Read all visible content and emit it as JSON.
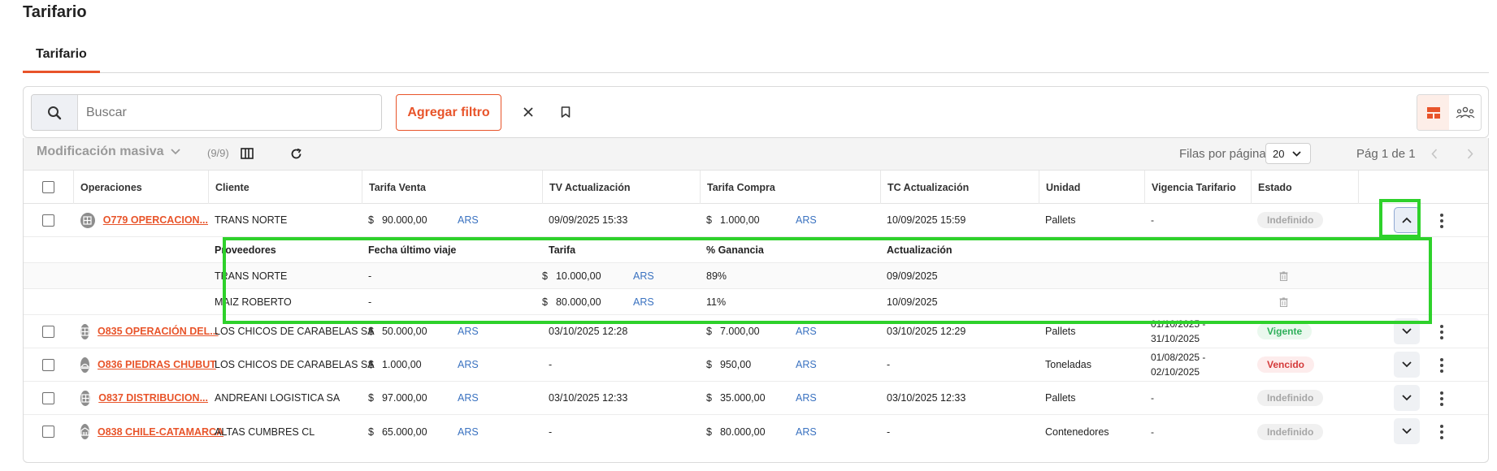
{
  "page": {
    "title": "Tarifario",
    "tab": "Tarifario"
  },
  "toolbar": {
    "search_placeholder": "Buscar",
    "add_filter": "Agregar filtro"
  },
  "grid_toolbar": {
    "mass_edit": "Modificación masiva",
    "count": "(9/9)",
    "rows_per_page_label": "Filas por página",
    "rows_per_page_value": "20",
    "page_info": "Pág 1 de 1"
  },
  "columns": [
    "Operaciones",
    "Cliente",
    "Tarifa Venta",
    "TV Actualización",
    "Tarifa Compra",
    "TC Actualización",
    "Unidad",
    "Vigencia Tarifario",
    "Estado"
  ],
  "rows": [
    {
      "op": "O779 OPERCACION...",
      "icon": "pallet-icon",
      "cliente": "TRANS NORTE",
      "tv_sign": "$",
      "tv": "90.000,00",
      "tv_cur": "ARS",
      "tv_act": "09/09/2025 15:33",
      "tc_sign": "$",
      "tc": "1.000,00",
      "tc_cur": "ARS",
      "tc_act": "10/09/2025 15:59",
      "unidad": "Pallets",
      "vig1": "-",
      "vig2": "",
      "estado": "Indefinido",
      "estado_kind": "indef"
    },
    {
      "op": "O835 OPERACIÓN DEL...",
      "icon": "pallet-icon",
      "cliente": "LOS CHICOS DE CARABELAS SA",
      "tv_sign": "$",
      "tv": "50.000,00",
      "tv_cur": "ARS",
      "tv_act": "03/10/2025 12:28",
      "tc_sign": "$",
      "tc": "7.000,00",
      "tc_cur": "ARS",
      "tc_act": "03/10/2025 12:29",
      "unidad": "Pallets",
      "vig1": "01/10/2025 -",
      "vig2": "31/10/2025",
      "estado": "Vigente",
      "estado_kind": "vig"
    },
    {
      "op": "O836 PIEDRAS CHUBUT",
      "icon": "tons-icon",
      "cliente": "LOS CHICOS DE CARABELAS SA",
      "tv_sign": "$",
      "tv": "1.000,00",
      "tv_cur": "ARS",
      "tv_act": "-",
      "tc_sign": "$",
      "tc": "950,00",
      "tc_cur": "ARS",
      "tc_act": "-",
      "unidad": "Toneladas",
      "vig1": "01/08/2025 -",
      "vig2": "02/10/2025",
      "estado": "Vencido",
      "estado_kind": "ven"
    },
    {
      "op": "O837 DISTRIBUCION...",
      "icon": "pallet-icon",
      "cliente": "ANDREANI LOGISTICA SA",
      "tv_sign": "$",
      "tv": "97.000,00",
      "tv_cur": "ARS",
      "tv_act": "03/10/2025 12:33",
      "tc_sign": "$",
      "tc": "35.000,00",
      "tc_cur": "ARS",
      "tc_act": "03/10/2025 12:33",
      "unidad": "Pallets",
      "vig1": "-",
      "vig2": "",
      "estado": "Indefinido",
      "estado_kind": "indef"
    },
    {
      "op": "O838 CHILE-CATAMARCA",
      "icon": "container-icon",
      "cliente": "ALTAS CUMBRES CL",
      "tv_sign": "$",
      "tv": "65.000,00",
      "tv_cur": "ARS",
      "tv_act": "-",
      "tc_sign": "$",
      "tc": "80.000,00",
      "tc_cur": "ARS",
      "tc_act": "-",
      "unidad": "Contenedores",
      "vig1": "-",
      "vig2": "",
      "estado": "Indefinido",
      "estado_kind": "indef"
    }
  ],
  "sub_columns": [
    "Proveedores",
    "Fecha último viaje",
    "Tarifa",
    "% Ganancia",
    "Actualización"
  ],
  "sub_rows": [
    {
      "proveedor": "TRANS NORTE",
      "fecha": "-",
      "sign": "$",
      "tarifa": "10.000,00",
      "cur": "ARS",
      "ganancia": "89%",
      "act": "09/09/2025"
    },
    {
      "proveedor": "MAIZ ROBERTO",
      "fecha": "-",
      "sign": "$",
      "tarifa": "80.000,00",
      "cur": "ARS",
      "ganancia": "11%",
      "act": "10/09/2025"
    }
  ],
  "colors": {
    "accent": "#e8542a",
    "currency": "#3a72c0",
    "highlight": "#2ed12b",
    "vigente": "#2fb05a",
    "vencido": "#d43a3a"
  }
}
